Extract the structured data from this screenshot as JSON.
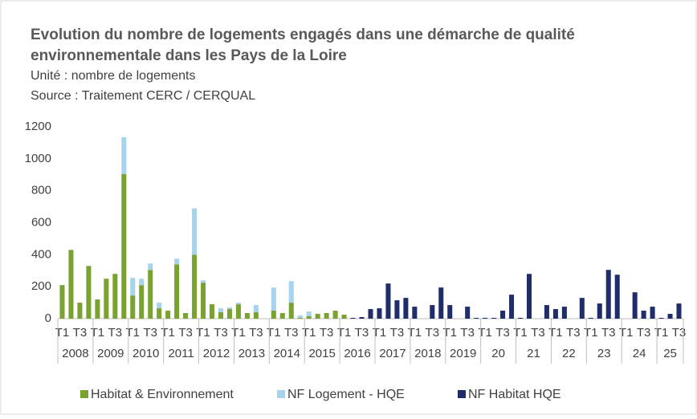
{
  "chart_data": {
    "type": "stacked_bar",
    "title": [
      "Evolution du nombre de logements engagés dans une démarche de qualité",
      "environnementale dans les Pays de la Loire"
    ],
    "subtitle": [
      "Unité : nombre de logements",
      "Source : Traitement CERC /  CERQUAL"
    ],
    "categories": [
      "T1",
      null,
      "T3",
      null,
      "T1",
      null,
      "T3",
      null,
      "T1",
      null,
      "T3",
      null,
      "T1",
      null,
      "T3",
      null,
      "T1",
      null,
      "T3",
      null,
      "T1",
      null,
      "T3",
      null,
      "T1",
      null,
      "T3",
      null,
      "T1",
      null,
      "T3",
      null,
      "T1",
      null,
      "T3",
      null,
      "T1",
      null,
      "T3",
      null,
      "T1",
      null,
      "T3",
      null,
      "T1",
      null,
      "T3",
      null,
      "T1",
      null,
      "T3",
      null,
      "T1",
      null,
      "T3",
      null,
      "T1",
      null,
      "T3",
      null,
      "T1",
      null,
      "T3",
      null,
      "T1",
      null,
      "T3",
      null,
      "T1",
      null,
      "T3"
    ],
    "x_groups": [
      {
        "label": "2008",
        "size": 4
      },
      {
        "label": "2009",
        "size": 4
      },
      {
        "label": "2010",
        "size": 4
      },
      {
        "label": "2011",
        "size": 4
      },
      {
        "label": "2012",
        "size": 4
      },
      {
        "label": "2013",
        "size": 4
      },
      {
        "label": "2014",
        "size": 4
      },
      {
        "label": "2015",
        "size": 4
      },
      {
        "label": "2016",
        "size": 4
      },
      {
        "label": "2017",
        "size": 4
      },
      {
        "label": "2018",
        "size": 4
      },
      {
        "label": "2019",
        "size": 4
      },
      {
        "label": "20",
        "size": 4
      },
      {
        "label": "21",
        "size": 4
      },
      {
        "label": "22",
        "size": 4
      },
      {
        "label": "23",
        "size": 4
      },
      {
        "label": "24",
        "size": 4
      },
      {
        "label": "25",
        "size": 3
      }
    ],
    "series": [
      {
        "name": "Habitat & Environnement",
        "color": "#7aa230",
        "values": [
          210,
          430,
          100,
          330,
          120,
          250,
          280,
          905,
          145,
          210,
          305,
          65,
          50,
          340,
          35,
          400,
          225,
          90,
          40,
          60,
          90,
          35,
          40,
          0,
          50,
          35,
          100,
          5,
          15,
          30,
          35,
          50,
          25,
          0,
          0,
          0,
          0,
          0,
          0,
          0,
          0,
          0,
          0,
          0,
          0,
          0,
          0,
          0,
          0,
          0,
          0,
          0,
          0,
          0,
          0,
          0,
          0,
          0,
          0,
          0,
          0,
          0,
          0,
          0,
          0,
          0,
          0,
          0,
          0,
          0,
          0
        ]
      },
      {
        "name": "NF Logement - HQE",
        "color": "#a6d4ec",
        "values": [
          0,
          0,
          0,
          0,
          0,
          0,
          0,
          230,
          110,
          40,
          40,
          35,
          0,
          35,
          0,
          290,
          15,
          0,
          25,
          10,
          10,
          0,
          45,
          0,
          145,
          0,
          135,
          15,
          30,
          0,
          0,
          0,
          0,
          0,
          0,
          0,
          0,
          0,
          0,
          0,
          0,
          0,
          0,
          0,
          0,
          0,
          0,
          0,
          0,
          0,
          0,
          0,
          0,
          0,
          0,
          0,
          0,
          0,
          0,
          0,
          0,
          0,
          0,
          0,
          0,
          0,
          0,
          0,
          0,
          0,
          0
        ]
      },
      {
        "name": "NF Habitat HQE",
        "color": "#1f2d6b",
        "values": [
          0,
          0,
          0,
          0,
          0,
          0,
          0,
          0,
          0,
          0,
          0,
          0,
          0,
          0,
          0,
          0,
          0,
          0,
          0,
          0,
          0,
          0,
          0,
          0,
          0,
          0,
          0,
          0,
          0,
          0,
          0,
          0,
          0,
          5,
          10,
          60,
          65,
          220,
          115,
          130,
          75,
          0,
          85,
          195,
          85,
          0,
          75,
          5,
          5,
          5,
          50,
          150,
          5,
          280,
          0,
          85,
          60,
          75,
          0,
          130,
          5,
          95,
          305,
          275,
          0,
          165,
          50,
          75,
          5,
          30,
          95
        ]
      }
    ],
    "ylim": [
      0,
      1200
    ],
    "yticks": [
      0,
      200,
      400,
      600,
      800,
      1000,
      1200
    ],
    "legend": "bottom"
  }
}
